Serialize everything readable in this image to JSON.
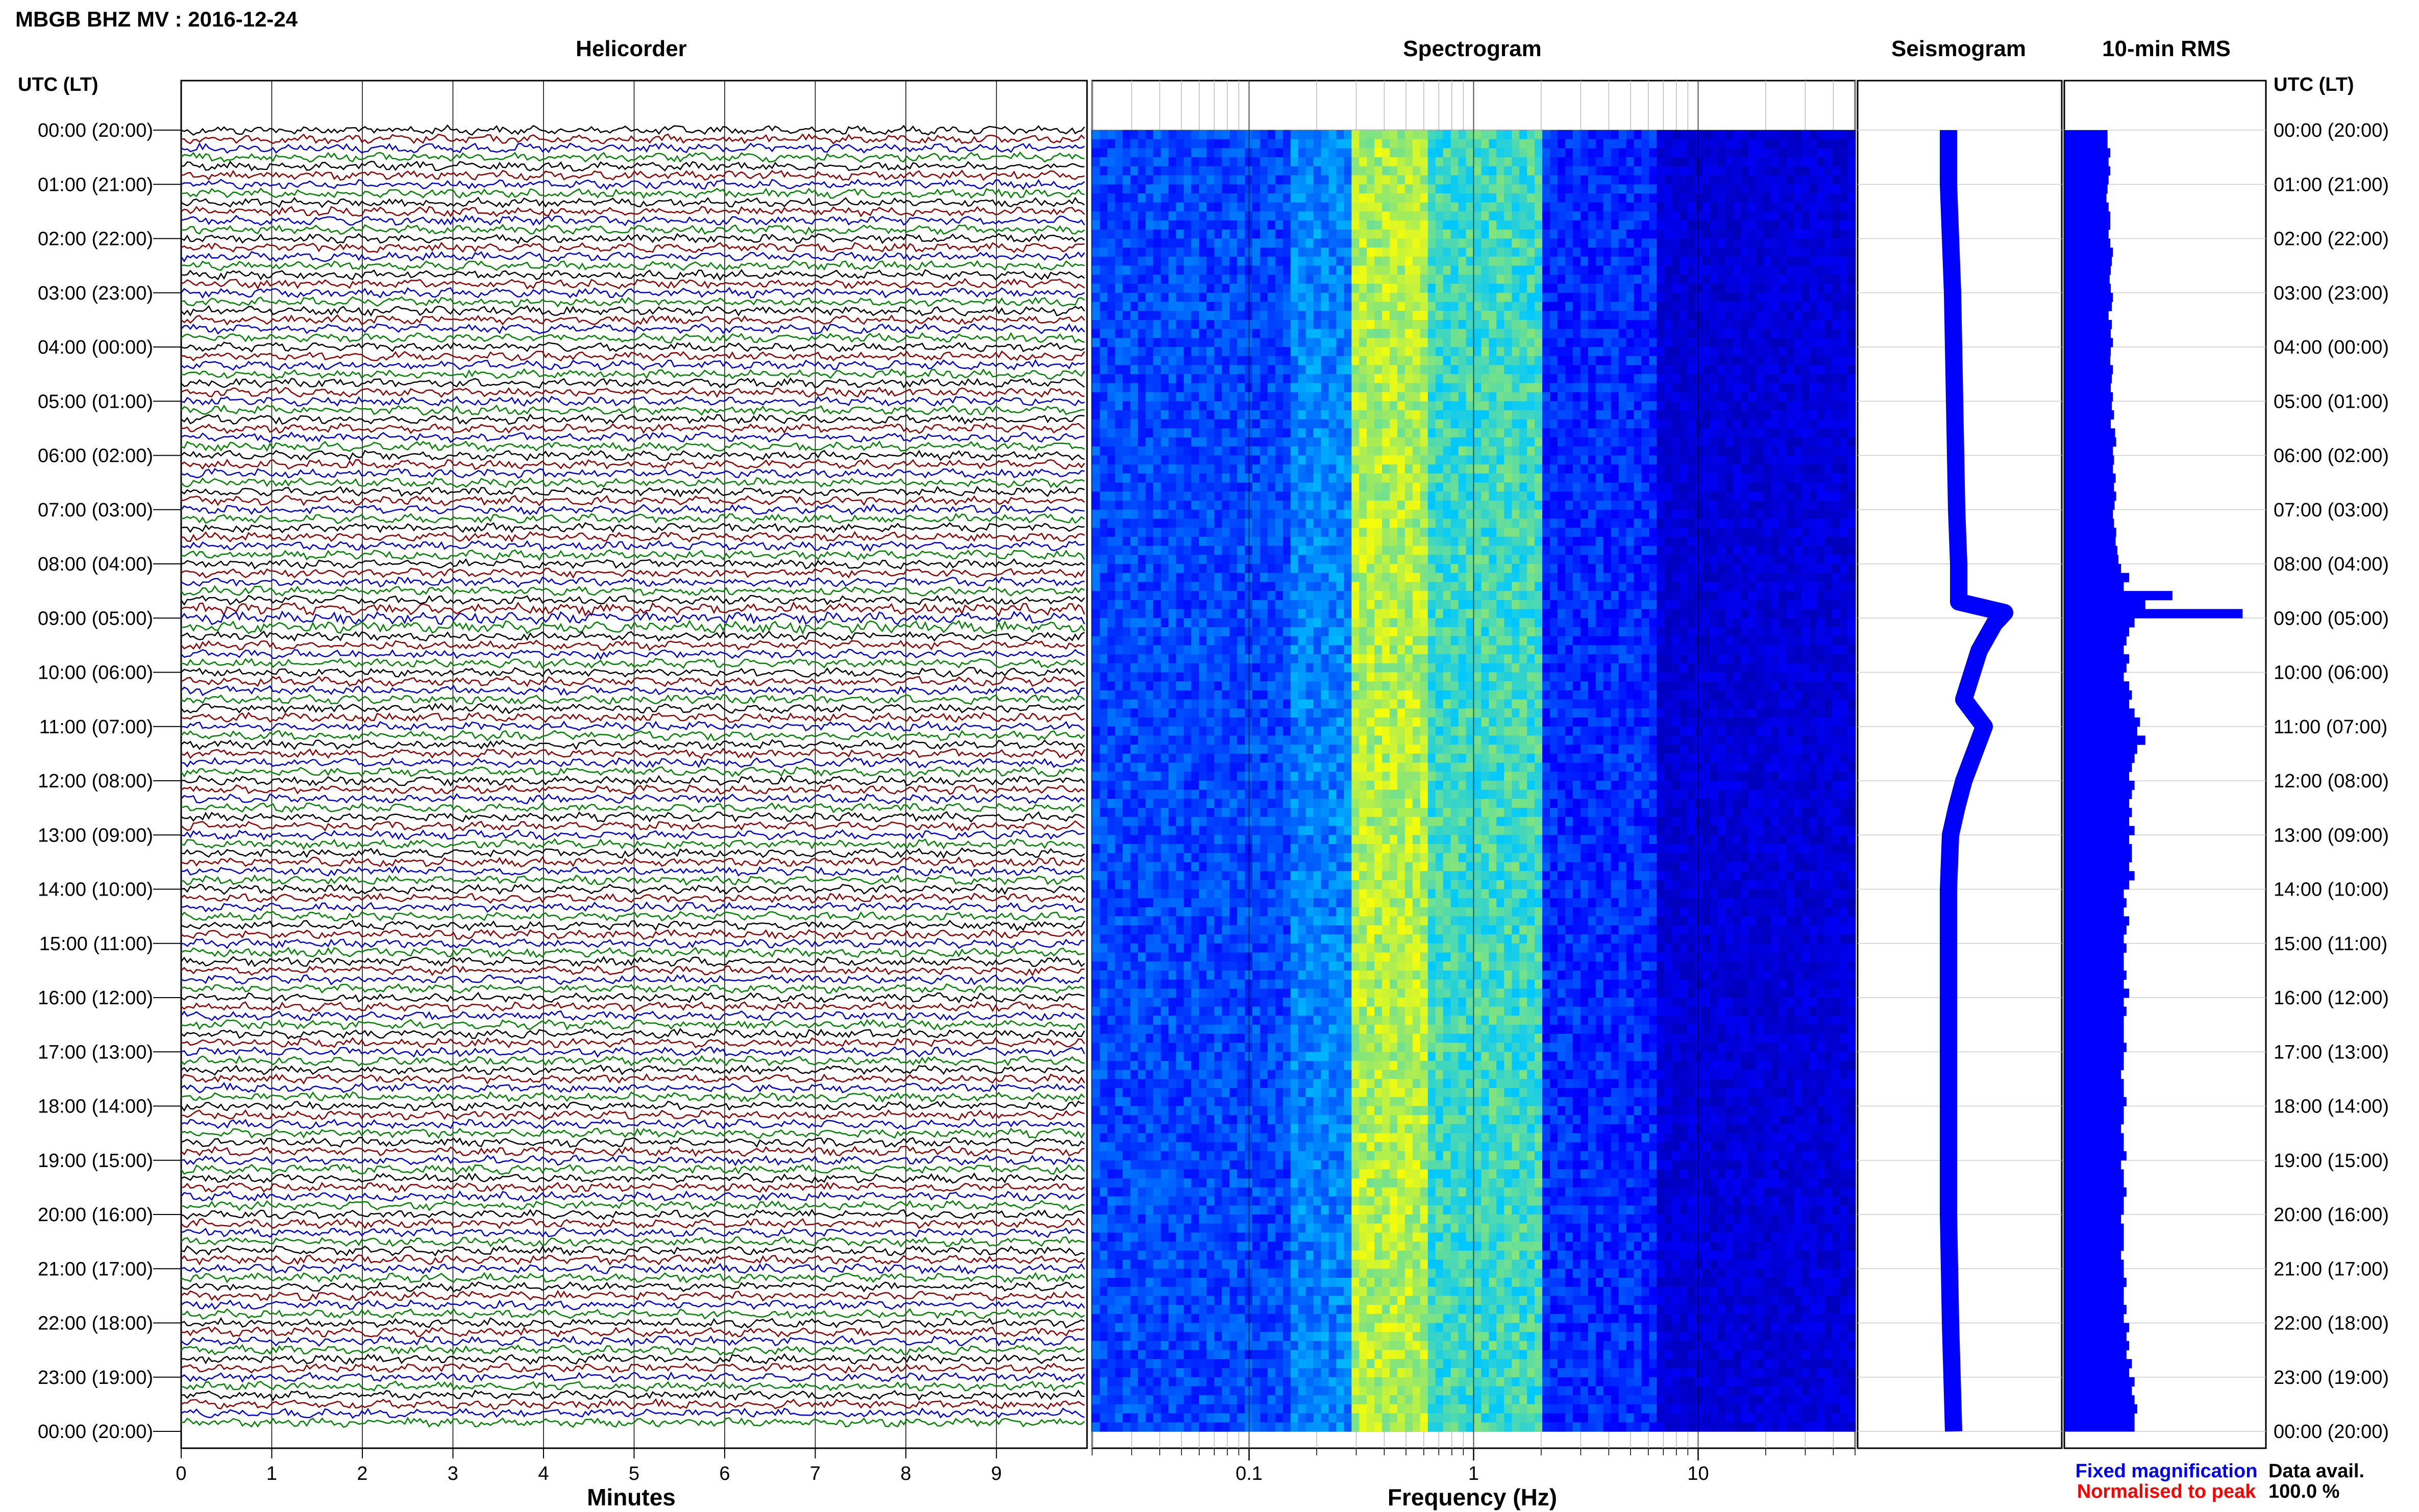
{
  "header": {
    "title": "MBGB BHZ MV : 2016-12-24"
  },
  "panels": {
    "helicorder": "Helicorder",
    "spectrogram": "Spectrogram",
    "seismogram": "Seismogram",
    "rms": "10-min RMS"
  },
  "axes": {
    "utc_label": "UTC (LT)",
    "minutes_label": "Minutes",
    "frequency_label": "Frequency (Hz)"
  },
  "legend": {
    "fixed": "Fixed magnification",
    "fixed_color": "#0000ff",
    "normalised": "Normalised to peak",
    "normalised_color": "#ff0000",
    "avail_label": "Data avail.",
    "avail_value": "100.0 %"
  },
  "chart_data": [
    {
      "type": "line",
      "name": "helicorder",
      "x_ticks": [
        "0",
        "1",
        "2",
        "3",
        "4",
        "5",
        "6",
        "7",
        "8",
        "9"
      ],
      "xlim": [
        0,
        10
      ],
      "time_ticks": [
        "00:00 (20:00)",
        "01:00 (21:00)",
        "02:00 (22:00)",
        "03:00 (23:00)",
        "04:00 (00:00)",
        "05:00 (01:00)",
        "06:00 (02:00)",
        "07:00 (03:00)",
        "08:00 (04:00)",
        "09:00 (05:00)",
        "10:00 (06:00)",
        "11:00 (07:00)",
        "12:00 (08:00)",
        "13:00 (09:00)",
        "14:00 (10:00)",
        "15:00 (11:00)",
        "16:00 (12:00)",
        "17:00 (13:00)",
        "18:00 (14:00)",
        "19:00 (15:00)",
        "20:00 (16:00)",
        "21:00 (17:00)",
        "22:00 (18:00)",
        "23:00 (19:00)",
        "00:00 (20:00)"
      ],
      "traces_per_hour": 6,
      "trace_colors": [
        "#000000",
        "#8b0000",
        "#0000cd",
        "#008000"
      ]
    },
    {
      "type": "heatmap",
      "name": "spectrogram",
      "x_scale": "log",
      "xlim": [
        0.02,
        50
      ],
      "x_ticks": [
        "0.1",
        "1",
        "10"
      ],
      "colormap": [
        "#00008b",
        "#0000ff",
        "#00c8ff",
        "#ffff00"
      ]
    },
    {
      "type": "line",
      "name": "seismogram",
      "y_hours": [
        0,
        1,
        2,
        3,
        4,
        5,
        6,
        7,
        8,
        8.7,
        8.9,
        9.1,
        9.6,
        10.5,
        11,
        11.5,
        12,
        12.5,
        13,
        14,
        16,
        18,
        20,
        22,
        24
      ],
      "x_offset": [
        -0.1,
        -0.1,
        -0.08,
        -0.06,
        -0.05,
        -0.04,
        -0.03,
        -0.02,
        0.0,
        0.0,
        0.45,
        0.35,
        0.2,
        0.05,
        0.25,
        0.15,
        0.05,
        -0.02,
        -0.08,
        -0.1,
        -0.1,
        -0.1,
        -0.1,
        -0.08,
        -0.05
      ]
    },
    {
      "type": "bar",
      "name": "rms",
      "orientation": "horizontal",
      "bar_color": "#0000ff",
      "values": [
        0.8,
        0.8,
        0.85,
        0.82,
        0.85,
        0.82,
        0.8,
        0.78,
        0.82,
        0.85,
        0.85,
        0.82,
        0.85,
        0.9,
        0.88,
        0.86,
        0.84,
        0.86,
        0.9,
        0.88,
        0.82,
        0.88,
        0.86,
        0.9,
        0.86,
        0.85,
        0.9,
        0.88,
        0.86,
        0.9,
        0.88,
        0.92,
        0.86,
        0.94,
        0.96,
        0.9,
        0.92,
        0.9,
        0.95,
        0.92,
        0.96,
        0.93,
        0.9,
        0.92,
        0.96,
        0.95,
        0.98,
        1.0,
        1.05,
        1.2,
        1.1,
        2.0,
        1.5,
        3.3,
        1.3,
        1.2,
        1.15,
        1.1,
        1.2,
        1.15,
        1.1,
        1.2,
        1.25,
        1.2,
        1.3,
        1.4,
        1.35,
        1.5,
        1.35,
        1.3,
        1.25,
        1.2,
        1.3,
        1.25,
        1.2,
        1.25,
        1.2,
        1.3,
        1.2,
        1.25,
        1.25,
        1.2,
        1.3,
        1.2,
        1.1,
        1.15,
        1.1,
        1.2,
        1.15,
        1.1,
        1.15,
        1.1,
        1.1,
        1.15,
        1.1,
        1.2,
        1.1,
        1.15,
        1.1,
        1.1,
        1.1,
        1.15,
        1.1,
        1.1,
        1.05,
        1.1,
        1.1,
        1.15,
        1.1,
        1.1,
        1.05,
        1.1,
        1.1,
        1.15,
        1.05,
        1.1,
        1.1,
        1.15,
        1.1,
        1.1,
        1.05,
        1.1,
        1.1,
        1.1,
        1.05,
        1.1,
        1.1,
        1.15,
        1.1,
        1.1,
        1.15,
        1.1,
        1.2,
        1.15,
        1.2,
        1.15,
        1.25,
        1.2,
        1.3,
        1.25,
        1.3,
        1.35,
        1.3,
        1.3
      ]
    }
  ]
}
